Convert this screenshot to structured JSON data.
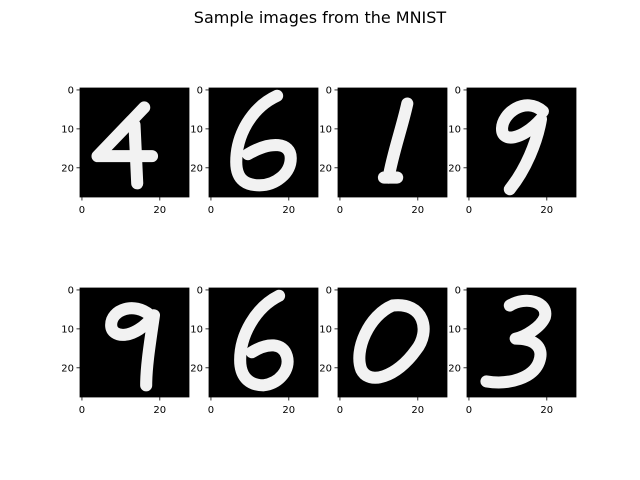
{
  "title": "Sample images from the MNIST",
  "chart_data": {
    "type": "image-grid",
    "title": "Sample images from the MNIST",
    "rows": 2,
    "cols": 4,
    "colormap": "gray",
    "image_size": [
      28,
      28
    ],
    "xlim": [
      -0.5,
      27.5
    ],
    "ylim": [
      27.5,
      -0.5
    ],
    "xticks": [
      0,
      20
    ],
    "yticks": [
      0,
      10,
      20
    ],
    "x_tick_labels": [
      "0",
      "20"
    ],
    "y_tick_labels": [
      "0",
      "10",
      "20"
    ],
    "digits": [
      "4",
      "6",
      "1",
      "9",
      "9",
      "6",
      "0",
      "3"
    ]
  }
}
